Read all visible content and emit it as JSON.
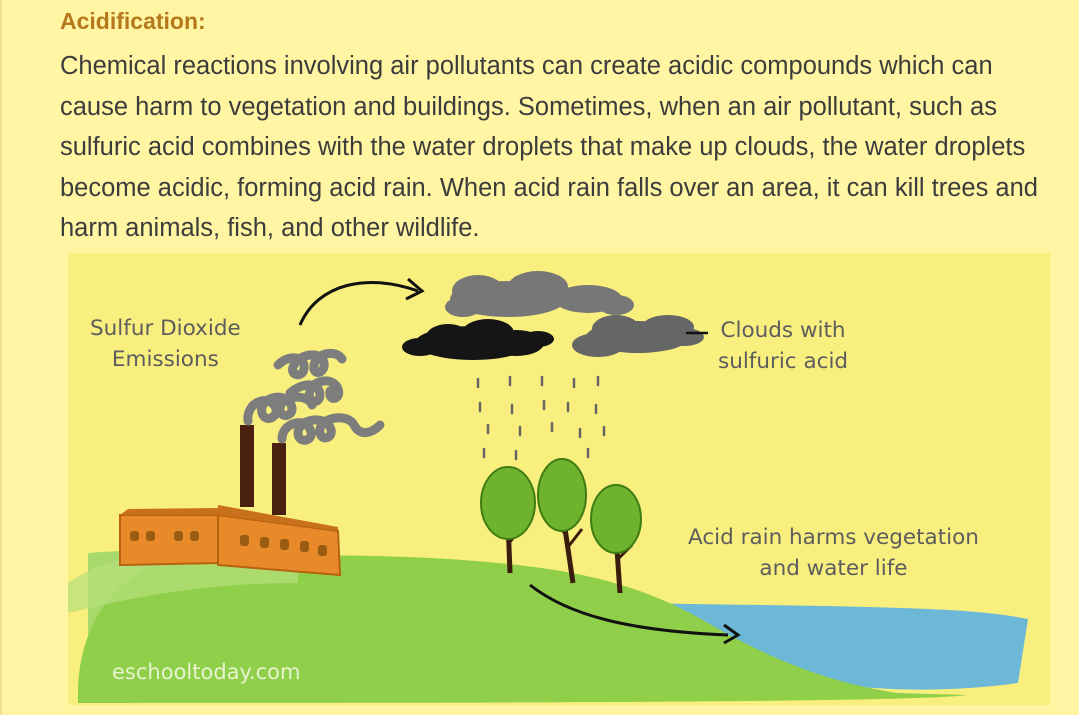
{
  "heading": "Acidification:",
  "paragraph": "Chemical reactions involving air pollutants can create acidic compounds which can cause harm to vegetation and buildings. Sometimes, when an air pollutant, such as sulfuric acid combines with the water droplets that make up clouds, the water droplets become acidic, forming acid rain. When acid rain falls over an area, it can kill trees and harm animals, fish, and other wildlife.",
  "diagram": {
    "label_sulfur_line1": "Sulfur Dioxide",
    "label_sulfur_line2": "Emissions",
    "label_clouds_line1": "Clouds with",
    "label_clouds_line2": "sulfuric acid",
    "label_acid_line1": "Acid rain harms vegetation",
    "label_acid_line2": "and water life",
    "watermark": "eschooltoday.com"
  },
  "colors": {
    "page_background": "#fff5a3",
    "heading": "#b5781a",
    "body_text": "#3c3c3c",
    "diagram_background": "#f9ef7e",
    "ground": "#8fcf4a",
    "water": "#6cb8d6",
    "factory": "#e98a2a",
    "smoke": "#7a7a7a",
    "cloud_dark": "#1a1a1a",
    "cloud_grey": "#777777",
    "tree": "#6eb22e"
  }
}
